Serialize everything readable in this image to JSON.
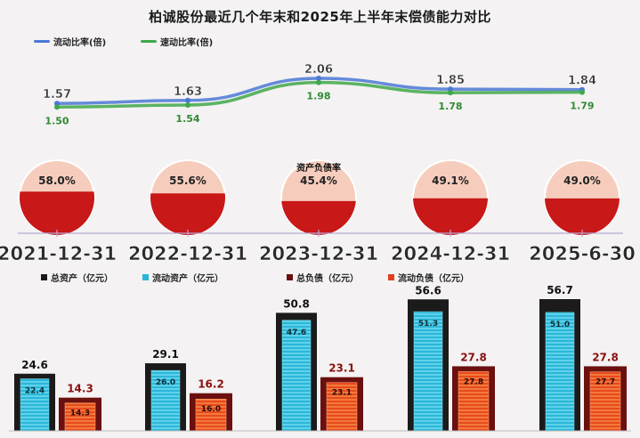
{
  "title": "柏诚股份最近几个年末和2025年上半年末偿债能力对比",
  "colors": {
    "current_ratio": "#4a78d6",
    "quick_ratio": "#3fa84a",
    "total_assets": "#1b1b1b",
    "current_assets": "#29b5d6",
    "total_liab": "#6b0f0f",
    "current_liab": "#e0401f",
    "debt_ratio": "#c81818"
  },
  "chart_data": [
    {
      "type": "line",
      "title": "",
      "x": [
        "2021-12-31",
        "2022-12-31",
        "2023-12-31",
        "2024-12-31",
        "2025-6-30"
      ],
      "series": [
        {
          "name": "流动比率(倍)",
          "values": [
            1.57,
            1.63,
            2.06,
            1.85,
            1.84
          ]
        },
        {
          "name": "速动比率(倍)",
          "values": [
            1.5,
            1.54,
            1.98,
            1.78,
            1.79
          ]
        }
      ],
      "grid": false,
      "legend": "top-left"
    },
    {
      "type": "pie",
      "label": "资产负债率",
      "categories": [
        "2021-12-31",
        "2022-12-31",
        "2023-12-31",
        "2024-12-31",
        "2025-6-30"
      ],
      "values": [
        "58.0%",
        "55.6%",
        "45.4%",
        "49.1%",
        "49.0%"
      ],
      "fractions": [
        0.58,
        0.556,
        0.454,
        0.491,
        0.49
      ]
    },
    {
      "type": "bar",
      "categories": [
        "2021-12-31",
        "2022-12-31",
        "2023-12-31",
        "2024-12-31",
        "2025-6-30"
      ],
      "series": [
        {
          "name": "总资产（亿元）",
          "values": [
            24.6,
            29.1,
            50.8,
            56.6,
            56.7
          ]
        },
        {
          "name": "流动资产（亿元）",
          "values": [
            22.4,
            26.0,
            47.6,
            51.3,
            51.0
          ]
        },
        {
          "name": "总负债（亿元）",
          "values": [
            14.3,
            16.2,
            23.1,
            27.8,
            27.8
          ]
        },
        {
          "name": "流动负债（亿元）",
          "values": [
            14.3,
            16.0,
            23.1,
            27.8,
            27.7
          ]
        }
      ],
      "legend": "top"
    }
  ]
}
